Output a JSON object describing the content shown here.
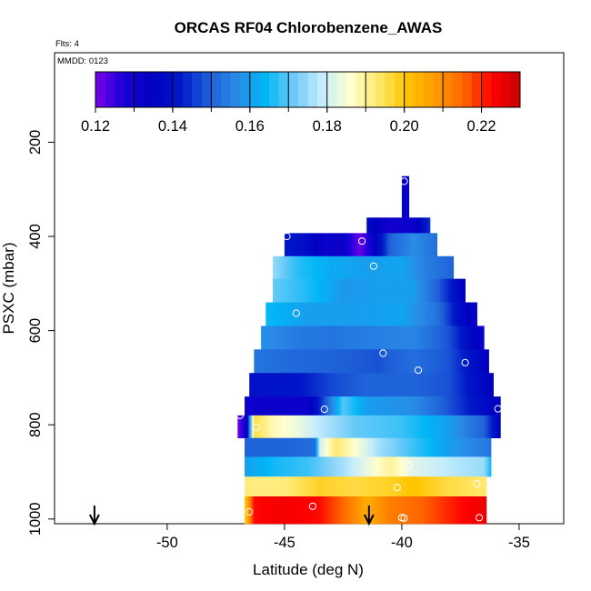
{
  "chart_data": {
    "type": "heatmap",
    "title": "ORCAS RF04 Chlorobenzene_AWAS",
    "flights_label": "Flts: 4",
    "date_label": "MMDD: 0123",
    "xlabel": "Latitude (deg N)",
    "ylabel": "PSXC (mbar)",
    "xlim": [
      -54.8,
      -33.1
    ],
    "ylim": [
      1010,
      10
    ],
    "y_reversed": true,
    "x_ticks": [
      -50,
      -45,
      -40,
      -35
    ],
    "x_tick_labels": [
      "-50",
      "-45",
      "-40",
      "-35"
    ],
    "y_ticks": [
      200,
      400,
      600,
      800,
      1000
    ],
    "y_tick_labels": [
      "200",
      "400",
      "600",
      "800",
      "1000"
    ],
    "colorbar": {
      "min": 0.12,
      "max": 0.23,
      "step": 0.01,
      "tick_values": [
        0.12,
        0.14,
        0.16,
        0.18,
        0.2,
        0.22
      ],
      "tick_labels": [
        "0.12",
        "0.14",
        "0.16",
        "0.18",
        "0.20",
        "0.22"
      ],
      "colors": [
        "#7b00e8",
        "#1a00d8",
        "#0000c0",
        "#0018c8",
        "#1e5fd8",
        "#2a8ae6",
        "#00b6f6",
        "#6ccaf8",
        "#c4ecfc",
        "#ffffd0",
        "#ffe86a",
        "#ffc400",
        "#ff9a00",
        "#ff6600",
        "#ff0000",
        "#c80000"
      ]
    },
    "curtain_rows": [
      {
        "p_top": 272,
        "p_bot": 360,
        "x0": -40.0,
        "x1": -39.7,
        "segments": [
          {
            "x": -40.0,
            "v": 0.132
          },
          {
            "x": -39.7,
            "v": 0.132
          }
        ]
      },
      {
        "p_top": 360,
        "p_bot": 393,
        "x0": -41.5,
        "x1": -38.8,
        "segments": [
          {
            "x": -41.5,
            "v": 0.137
          },
          {
            "x": -40.5,
            "v": 0.13
          },
          {
            "x": -39.5,
            "v": 0.131
          },
          {
            "x": -38.8,
            "v": 0.145
          }
        ]
      },
      {
        "p_top": 393,
        "p_bot": 442,
        "x0": -45.0,
        "x1": -38.5,
        "segments": [
          {
            "x": -45.0,
            "v": 0.142
          },
          {
            "x": -44.0,
            "v": 0.138
          },
          {
            "x": -43.2,
            "v": 0.131
          },
          {
            "x": -42.5,
            "v": 0.132
          },
          {
            "x": -41.8,
            "v": 0.121
          },
          {
            "x": -41.3,
            "v": 0.13
          },
          {
            "x": -40.5,
            "v": 0.15
          },
          {
            "x": -39.5,
            "v": 0.157
          },
          {
            "x": -38.5,
            "v": 0.152
          }
        ]
      },
      {
        "p_top": 442,
        "p_bot": 490,
        "x0": -45.5,
        "x1": -37.8,
        "segments": [
          {
            "x": -45.5,
            "v": 0.175
          },
          {
            "x": -44.5,
            "v": 0.167
          },
          {
            "x": -43.0,
            "v": 0.162
          },
          {
            "x": -41.5,
            "v": 0.16
          },
          {
            "x": -40.0,
            "v": 0.161
          },
          {
            "x": -39.0,
            "v": 0.155
          },
          {
            "x": -37.8,
            "v": 0.15
          }
        ]
      },
      {
        "p_top": 490,
        "p_bot": 540,
        "x0": -45.5,
        "x1": -37.3,
        "segments": [
          {
            "x": -45.5,
            "v": 0.171
          },
          {
            "x": -44.0,
            "v": 0.166
          },
          {
            "x": -42.5,
            "v": 0.159
          },
          {
            "x": -41.0,
            "v": 0.16
          },
          {
            "x": -39.5,
            "v": 0.16
          },
          {
            "x": -38.5,
            "v": 0.15
          },
          {
            "x": -37.3,
            "v": 0.134
          }
        ]
      },
      {
        "p_top": 540,
        "p_bot": 590,
        "x0": -45.8,
        "x1": -36.8,
        "segments": [
          {
            "x": -45.8,
            "v": 0.165
          },
          {
            "x": -44.0,
            "v": 0.16
          },
          {
            "x": -42.0,
            "v": 0.16
          },
          {
            "x": -40.0,
            "v": 0.161
          },
          {
            "x": -38.5,
            "v": 0.153
          },
          {
            "x": -37.5,
            "v": 0.138
          },
          {
            "x": -36.8,
            "v": 0.131
          }
        ]
      },
      {
        "p_top": 590,
        "p_bot": 640,
        "x0": -46.0,
        "x1": -36.5,
        "segments": [
          {
            "x": -46.0,
            "v": 0.158
          },
          {
            "x": -44.5,
            "v": 0.154
          },
          {
            "x": -43.0,
            "v": 0.153
          },
          {
            "x": -41.0,
            "v": 0.155
          },
          {
            "x": -39.5,
            "v": 0.156
          },
          {
            "x": -38.0,
            "v": 0.148
          },
          {
            "x": -36.5,
            "v": 0.131
          }
        ]
      },
      {
        "p_top": 640,
        "p_bot": 690,
        "x0": -46.3,
        "x1": -36.3,
        "segments": [
          {
            "x": -46.3,
            "v": 0.153
          },
          {
            "x": -44.5,
            "v": 0.151
          },
          {
            "x": -43.0,
            "v": 0.15
          },
          {
            "x": -41.0,
            "v": 0.148
          },
          {
            "x": -39.5,
            "v": 0.152
          },
          {
            "x": -38.0,
            "v": 0.148
          },
          {
            "x": -36.3,
            "v": 0.134
          }
        ]
      },
      {
        "p_top": 690,
        "p_bot": 740,
        "x0": -46.5,
        "x1": -36.1,
        "segments": [
          {
            "x": -46.5,
            "v": 0.14
          },
          {
            "x": -44.5,
            "v": 0.141
          },
          {
            "x": -43.0,
            "v": 0.147
          },
          {
            "x": -41.5,
            "v": 0.15
          },
          {
            "x": -39.5,
            "v": 0.15
          },
          {
            "x": -38.0,
            "v": 0.148
          },
          {
            "x": -36.1,
            "v": 0.134
          }
        ]
      },
      {
        "p_top": 740,
        "p_bot": 780,
        "x0": -46.7,
        "x1": -35.8,
        "segments": [
          {
            "x": -46.7,
            "v": 0.131
          },
          {
            "x": -44.0,
            "v": 0.132
          },
          {
            "x": -43.2,
            "v": 0.15
          },
          {
            "x": -42.5,
            "v": 0.17
          },
          {
            "x": -41.5,
            "v": 0.16
          },
          {
            "x": -39.5,
            "v": 0.157
          },
          {
            "x": -38.0,
            "v": 0.148
          },
          {
            "x": -35.8,
            "v": 0.134
          }
        ]
      },
      {
        "p_top": 780,
        "p_bot": 828,
        "x0": -47.0,
        "x1": -35.8,
        "segments": [
          {
            "x": -47.0,
            "v": 0.12
          },
          {
            "x": -46.6,
            "v": 0.132
          },
          {
            "x": -46.3,
            "v": 0.196
          },
          {
            "x": -45.5,
            "v": 0.188
          },
          {
            "x": -44.5,
            "v": 0.184
          },
          {
            "x": -43.5,
            "v": 0.178
          },
          {
            "x": -42.0,
            "v": 0.171
          },
          {
            "x": -40.0,
            "v": 0.168
          },
          {
            "x": -38.0,
            "v": 0.16
          },
          {
            "x": -36.5,
            "v": 0.15
          },
          {
            "x": -35.8,
            "v": 0.135
          }
        ]
      },
      {
        "p_top": 828,
        "p_bot": 868,
        "x0": -46.7,
        "x1": -36.2,
        "segments": [
          {
            "x": -46.7,
            "v": 0.15
          },
          {
            "x": -45.0,
            "v": 0.15
          },
          {
            "x": -43.7,
            "v": 0.152
          },
          {
            "x": -43.5,
            "v": 0.18
          },
          {
            "x": -42.8,
            "v": 0.193
          },
          {
            "x": -42.0,
            "v": 0.186
          },
          {
            "x": -41.0,
            "v": 0.176
          },
          {
            "x": -39.5,
            "v": 0.168
          },
          {
            "x": -38.0,
            "v": 0.16
          },
          {
            "x": -36.2,
            "v": 0.153
          }
        ]
      },
      {
        "p_top": 868,
        "p_bot": 910,
        "x0": -46.7,
        "x1": -36.2,
        "segments": [
          {
            "x": -46.7,
            "v": 0.16
          },
          {
            "x": -45.5,
            "v": 0.165
          },
          {
            "x": -44.0,
            "v": 0.168
          },
          {
            "x": -42.5,
            "v": 0.176
          },
          {
            "x": -40.5,
            "v": 0.19
          },
          {
            "x": -39.5,
            "v": 0.182
          },
          {
            "x": -38.0,
            "v": 0.178
          },
          {
            "x": -36.5,
            "v": 0.175
          },
          {
            "x": -36.2,
            "v": 0.165
          }
        ]
      },
      {
        "p_top": 910,
        "p_bot": 952,
        "x0": -46.7,
        "x1": -36.4,
        "segments": [
          {
            "x": -46.7,
            "v": 0.192
          },
          {
            "x": -45.0,
            "v": 0.192
          },
          {
            "x": -43.5,
            "v": 0.198
          },
          {
            "x": -42.0,
            "v": 0.196
          },
          {
            "x": -40.5,
            "v": 0.198
          },
          {
            "x": -39.5,
            "v": 0.201
          },
          {
            "x": -38.0,
            "v": 0.196
          },
          {
            "x": -36.4,
            "v": 0.193
          }
        ]
      },
      {
        "p_top": 952,
        "p_bot": 1010,
        "x0": -46.7,
        "x1": -36.4,
        "segments": [
          {
            "x": -46.7,
            "v": 0.198
          },
          {
            "x": -46.3,
            "v": 0.222
          },
          {
            "x": -45.0,
            "v": 0.224
          },
          {
            "x": -43.5,
            "v": 0.222
          },
          {
            "x": -42.5,
            "v": 0.215
          },
          {
            "x": -41.5,
            "v": 0.205
          },
          {
            "x": -40.5,
            "v": 0.212
          },
          {
            "x": -39.0,
            "v": 0.216
          },
          {
            "x": -37.5,
            "v": 0.222
          },
          {
            "x": -36.4,
            "v": 0.225
          }
        ]
      }
    ],
    "sample_points": [
      {
        "lat": -39.9,
        "p": 283
      },
      {
        "lat": -44.9,
        "p": 400
      },
      {
        "lat": -41.7,
        "p": 410
      },
      {
        "lat": -41.2,
        "p": 463
      },
      {
        "lat": -44.5,
        "p": 563
      },
      {
        "lat": -40.8,
        "p": 648
      },
      {
        "lat": -39.3,
        "p": 684
      },
      {
        "lat": -37.3,
        "p": 668
      },
      {
        "lat": -35.9,
        "p": 766
      },
      {
        "lat": -43.3,
        "p": 767
      },
      {
        "lat": -46.9,
        "p": 780
      },
      {
        "lat": -46.2,
        "p": 805
      },
      {
        "lat": -39.7,
        "p": 886
      },
      {
        "lat": -40.2,
        "p": 933
      },
      {
        "lat": -36.8,
        "p": 925
      },
      {
        "lat": -43.8,
        "p": 973
      },
      {
        "lat": -46.5,
        "p": 985
      },
      {
        "lat": -40.0,
        "p": 997
      },
      {
        "lat": -39.9,
        "p": 998
      },
      {
        "lat": -36.7,
        "p": 997
      }
    ],
    "arrows": [
      {
        "lat": -53.1
      },
      {
        "lat": -41.4
      }
    ]
  }
}
